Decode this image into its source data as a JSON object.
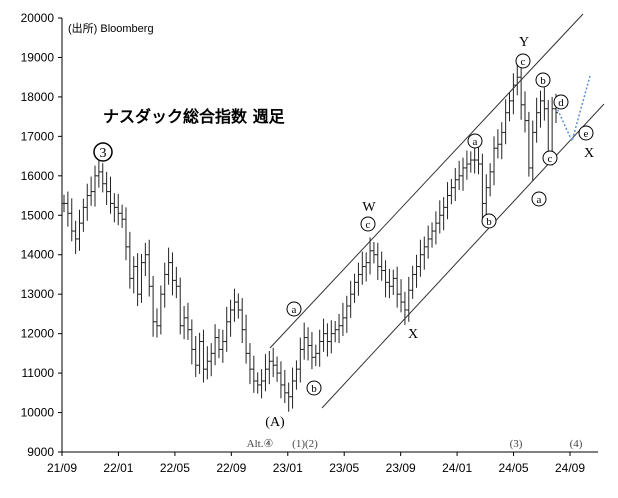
{
  "chart_data": {
    "type": "line",
    "subtype": "weekly-ohlc",
    "title": "ナスダック総合指数 週足",
    "source": "(出所) Bloomberg",
    "x_ticks": [
      "21/09",
      "22/01",
      "22/05",
      "22/09",
      "23/01",
      "23/05",
      "23/09",
      "24/01",
      "24/05",
      "24/09"
    ],
    "y_ticks": [
      "20000",
      "19000",
      "18000",
      "17000",
      "16000",
      "15000",
      "14000",
      "13000",
      "12000",
      "11000",
      "10000",
      "9000"
    ],
    "ylim": [
      9000,
      20000
    ],
    "grid": false,
    "series": [
      {
        "values": [
          15300,
          15050,
          14600,
          14400,
          14800,
          15200,
          15500,
          15600,
          16000,
          16100,
          15800,
          15600,
          15300,
          15200,
          15050,
          14900,
          14200,
          13400,
          13700,
          13000,
          13800,
          14000,
          13200,
          12300,
          12200,
          13000,
          13500,
          13800,
          13350,
          13200,
          12200,
          12400,
          12100,
          11600,
          11200,
          11800,
          11100,
          11300,
          11500,
          11900,
          11600,
          11800,
          12300,
          12600,
          12800,
          12600,
          12100,
          11500,
          11100,
          10800,
          10700,
          10800,
          11100,
          11300,
          11200,
          11000,
          10700,
          10500,
          10400,
          10800,
          11100,
          11600,
          11900,
          11700,
          11400,
          11500,
          11800,
          12000,
          11800,
          12000,
          12100,
          12200,
          12400,
          12700,
          13000,
          13300,
          13500,
          13700,
          13800,
          14100,
          14000,
          13700,
          13600,
          13300,
          13200,
          13400,
          13000,
          12800,
          12600,
          13100,
          13500,
          13700,
          14000,
          14200,
          14400,
          14600,
          14800,
          15000,
          15200,
          15500,
          15700,
          15900,
          16000,
          16200,
          16300,
          16400,
          16400,
          16300,
          15300,
          15700,
          16100,
          16700,
          16800,
          17100,
          17600,
          17900,
          18300,
          18500,
          17800,
          17400,
          16200,
          17100,
          17600,
          17900,
          17700,
          16600,
          17700,
          17600
        ]
      }
    ],
    "channel_lines_note": "Two parallel channel lines drawn from 23/01 region up through 24/09.",
    "projection": "dotted blue path from late 24/09 down to point e then up",
    "annotations": {
      "wave_3": "3",
      "alt4": "Alt.④",
      "A": "(A)",
      "a1": "a",
      "b1": "b",
      "W": "W",
      "c1": "c",
      "X1": "X",
      "a2": "a",
      "b2": "b",
      "Y": "Y",
      "c2": "c",
      "b3": "b",
      "d": "d",
      "a3": "a",
      "c3": "c",
      "e": "e",
      "X2": "X",
      "w1": "(1)",
      "w2": "(2)",
      "w3": "(3)",
      "w4": "(4)"
    }
  }
}
